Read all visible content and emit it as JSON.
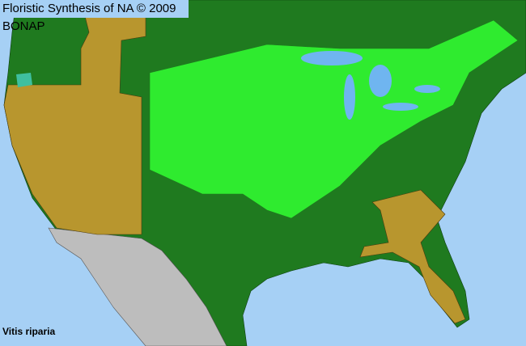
{
  "header": {
    "title": "Floristic Synthesis of NA © 2009 BONAP"
  },
  "species": {
    "name": "Vitis riparia"
  },
  "colors": {
    "water": "#a6d0f5",
    "present_native": "#1f7a1f",
    "present_county": "#33ff33",
    "absent_state": "#b8962e",
    "outside_range": "#bdbdbd",
    "introduced_county": "#3fbfa0"
  }
}
